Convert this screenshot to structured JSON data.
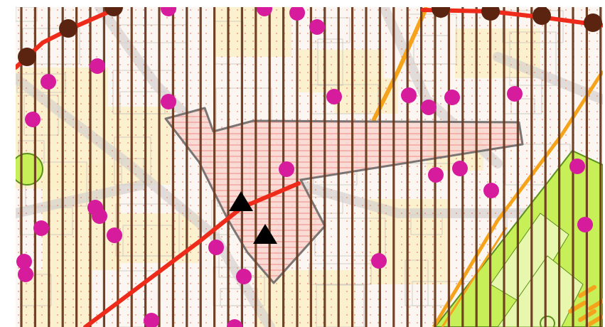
{
  "map": {
    "colors": {
      "paper": "#fbf6f1",
      "border_white": "#ffffff",
      "parcel_fill": "#fbf0c8",
      "parcel_line": "#c9c3bd",
      "stripe": "#6b3a1f",
      "dot": "#e66b4f",
      "road": "#d6d2ce",
      "red_route": "#ee2a1a",
      "node": "#5a2410",
      "magenta_point": "#d61b9c",
      "area_outline": "#7a7472",
      "area_hatch": "#f4a09a",
      "area_fill": "#f7d7d0",
      "triangle": "#000000",
      "orange_line": "#f6a31c",
      "green_zone": "#c7ef57",
      "green_zone_light": "#e8f7ae",
      "green_line": "#5b8f1e"
    },
    "layers": [
      "parcels",
      "dot-grid",
      "vertical-stripes",
      "red-route",
      "route-nodes",
      "magenta-points",
      "hatched-area",
      "triangle-markers",
      "orange-lines",
      "green-zone"
    ]
  }
}
